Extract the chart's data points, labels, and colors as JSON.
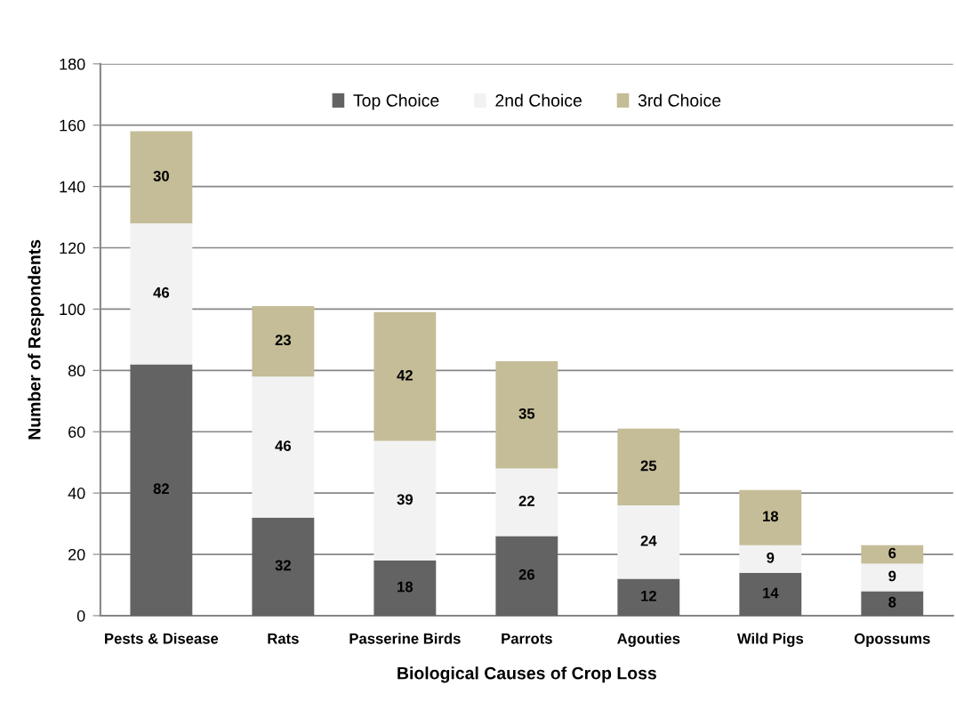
{
  "chart_data": {
    "type": "bar",
    "stacked": true,
    "xlabel": "Biological Causes of Crop Loss",
    "ylabel": "Number of Respondents",
    "categories": [
      "Pests & Disease",
      "Rats",
      "Passerine Birds",
      "Parrots",
      "Agouties",
      "Wild Pigs",
      "Opossums"
    ],
    "series": [
      {
        "name": "Top Choice",
        "color": "#636363",
        "values": [
          82,
          32,
          18,
          26,
          12,
          14,
          8
        ]
      },
      {
        "name": "2nd Choice",
        "color": "#f2f2f2",
        "values": [
          46,
          46,
          39,
          22,
          24,
          9,
          9
        ]
      },
      {
        "name": "3rd Choice",
        "color": "#c4bd97",
        "values": [
          30,
          23,
          42,
          35,
          25,
          18,
          6
        ]
      }
    ],
    "ylim": [
      0,
      180
    ],
    "yticks": [
      0,
      20,
      40,
      60,
      80,
      100,
      120,
      140,
      160,
      180
    ],
    "grid": "y",
    "legend": "top",
    "data_labels": true
  }
}
